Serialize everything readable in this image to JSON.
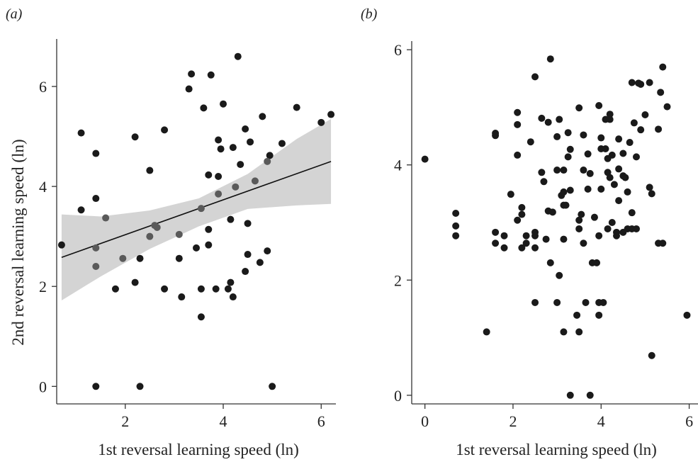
{
  "chart_data": [
    {
      "type": "scatter",
      "panel_label": "(a)",
      "xlabel": "1st reversal learning speed (ln)",
      "ylabel": "2nd reversal learning speed (ln)",
      "xlim": [
        0.6,
        6.3
      ],
      "ylim": [
        -0.35,
        6.95
      ],
      "xticks": [
        2,
        4,
        6
      ],
      "yticks": [
        0,
        2,
        4,
        6
      ],
      "regression": {
        "x": [
          0.7,
          6.2
        ],
        "y": [
          2.58,
          4.5
        ]
      },
      "confidence_band": {
        "x": [
          0.7,
          1.5,
          2.5,
          3.5,
          4.5,
          5.5,
          6.2
        ],
        "lower": [
          1.72,
          2.2,
          2.75,
          3.2,
          3.55,
          3.62,
          3.65
        ],
        "upper": [
          3.44,
          3.4,
          3.52,
          3.76,
          4.25,
          4.95,
          5.35
        ]
      },
      "points_dark": [
        [
          0.7,
          2.83
        ],
        [
          1.1,
          5.07
        ],
        [
          1.1,
          3.53
        ],
        [
          1.4,
          4.66
        ],
        [
          1.4,
          3.76
        ],
        [
          1.4,
          0.0
        ],
        [
          1.8,
          1.95
        ],
        [
          2.2,
          4.99
        ],
        [
          2.2,
          2.08
        ],
        [
          2.3,
          2.56
        ],
        [
          2.3,
          0.0
        ],
        [
          2.5,
          4.32
        ],
        [
          2.8,
          5.13
        ],
        [
          2.8,
          1.95
        ],
        [
          3.1,
          2.56
        ],
        [
          3.15,
          1.79
        ],
        [
          3.3,
          5.95
        ],
        [
          3.35,
          6.25
        ],
        [
          3.45,
          2.77
        ],
        [
          3.55,
          1.39
        ],
        [
          3.55,
          1.95
        ],
        [
          3.6,
          5.57
        ],
        [
          3.7,
          2.83
        ],
        [
          3.7,
          3.14
        ],
        [
          3.7,
          4.23
        ],
        [
          3.75,
          6.23
        ],
        [
          3.85,
          1.95
        ],
        [
          3.9,
          4.93
        ],
        [
          3.9,
          4.2
        ],
        [
          3.95,
          4.75
        ],
        [
          4.0,
          5.65
        ],
        [
          4.1,
          1.95
        ],
        [
          4.15,
          2.08
        ],
        [
          4.15,
          3.34
        ],
        [
          4.2,
          4.78
        ],
        [
          4.2,
          1.79
        ],
        [
          4.3,
          6.6
        ],
        [
          4.35,
          4.44
        ],
        [
          4.45,
          2.3
        ],
        [
          4.45,
          5.15
        ],
        [
          4.5,
          3.26
        ],
        [
          4.5,
          2.64
        ],
        [
          4.55,
          4.89
        ],
        [
          4.75,
          2.48
        ],
        [
          4.8,
          5.4
        ],
        [
          4.9,
          2.71
        ],
        [
          4.95,
          4.62
        ],
        [
          5.0,
          0.0
        ],
        [
          5.2,
          4.86
        ],
        [
          5.5,
          5.58
        ],
        [
          6.0,
          5.28
        ],
        [
          6.2,
          5.44
        ]
      ],
      "points_grey": [
        [
          1.4,
          2.77
        ],
        [
          1.4,
          2.4
        ],
        [
          1.6,
          3.37
        ],
        [
          1.95,
          2.56
        ],
        [
          2.5,
          3.0
        ],
        [
          2.6,
          3.22
        ],
        [
          2.65,
          3.18
        ],
        [
          3.1,
          3.04
        ],
        [
          3.55,
          3.56
        ],
        [
          3.9,
          3.85
        ],
        [
          4.25,
          3.99
        ],
        [
          4.65,
          4.11
        ],
        [
          4.9,
          4.5
        ]
      ],
      "colors": {
        "dark": "#1a1a1a",
        "grey": "#5a5a5a",
        "band": "#d4d4d4",
        "line": "#111111"
      }
    },
    {
      "type": "scatter",
      "panel_label": "(b)",
      "xlabel": "1st reversal learning speed (ln)",
      "ylabel": "",
      "xlim": [
        -0.3,
        6.2
      ],
      "ylim": [
        -0.15,
        6.15
      ],
      "xticks": [
        0,
        2,
        4,
        6
      ],
      "yticks": [
        0,
        2,
        4,
        6
      ],
      "points": [
        [
          0.0,
          4.1
        ],
        [
          0.7,
          3.16
        ],
        [
          0.7,
          2.94
        ],
        [
          0.7,
          2.77
        ],
        [
          1.4,
          1.1
        ],
        [
          1.6,
          4.55
        ],
        [
          1.6,
          4.51
        ],
        [
          1.6,
          2.83
        ],
        [
          1.6,
          2.64
        ],
        [
          1.8,
          2.77
        ],
        [
          1.8,
          2.56
        ],
        [
          1.95,
          3.49
        ],
        [
          2.1,
          4.91
        ],
        [
          2.1,
          4.7
        ],
        [
          2.1,
          4.17
        ],
        [
          2.1,
          3.04
        ],
        [
          2.2,
          3.26
        ],
        [
          2.2,
          3.14
        ],
        [
          2.2,
          2.56
        ],
        [
          2.3,
          2.77
        ],
        [
          2.3,
          2.64
        ],
        [
          2.4,
          4.4
        ],
        [
          2.5,
          5.53
        ],
        [
          2.5,
          2.83
        ],
        [
          2.5,
          2.77
        ],
        [
          2.5,
          2.56
        ],
        [
          2.5,
          1.61
        ],
        [
          2.65,
          4.81
        ],
        [
          2.65,
          3.87
        ],
        [
          2.7,
          3.71
        ],
        [
          2.75,
          2.71
        ],
        [
          2.8,
          4.74
        ],
        [
          2.8,
          3.2
        ],
        [
          2.85,
          5.84
        ],
        [
          2.85,
          2.3
        ],
        [
          2.9,
          3.18
        ],
        [
          3.0,
          4.49
        ],
        [
          3.0,
          3.91
        ],
        [
          3.0,
          1.61
        ],
        [
          3.05,
          4.79
        ],
        [
          3.05,
          2.08
        ],
        [
          3.1,
          3.47
        ],
        [
          3.15,
          3.91
        ],
        [
          3.15,
          3.53
        ],
        [
          3.15,
          3.3
        ],
        [
          3.15,
          2.71
        ],
        [
          3.15,
          1.1
        ],
        [
          3.2,
          3.3
        ],
        [
          3.25,
          4.56
        ],
        [
          3.25,
          4.14
        ],
        [
          3.3,
          4.27
        ],
        [
          3.3,
          3.56
        ],
        [
          3.3,
          0.0
        ],
        [
          3.45,
          1.39
        ],
        [
          3.5,
          4.99
        ],
        [
          3.5,
          3.04
        ],
        [
          3.5,
          2.89
        ],
        [
          3.5,
          1.1
        ],
        [
          3.55,
          3.14
        ],
        [
          3.6,
          4.52
        ],
        [
          3.6,
          3.91
        ],
        [
          3.6,
          2.64
        ],
        [
          3.65,
          1.61
        ],
        [
          3.7,
          4.19
        ],
        [
          3.7,
          3.58
        ],
        [
          3.75,
          3.85
        ],
        [
          3.75,
          0.0
        ],
        [
          3.8,
          2.3
        ],
        [
          3.85,
          3.09
        ],
        [
          3.9,
          2.3
        ],
        [
          3.95,
          5.03
        ],
        [
          3.95,
          2.77
        ],
        [
          3.95,
          1.39
        ],
        [
          3.95,
          1.61
        ],
        [
          4.0,
          4.47
        ],
        [
          4.0,
          4.28
        ],
        [
          4.0,
          3.58
        ],
        [
          4.05,
          1.61
        ],
        [
          4.1,
          4.79
        ],
        [
          4.1,
          4.28
        ],
        [
          4.15,
          4.11
        ],
        [
          4.15,
          3.87
        ],
        [
          4.15,
          2.89
        ],
        [
          4.2,
          4.88
        ],
        [
          4.2,
          4.79
        ],
        [
          4.2,
          3.78
        ],
        [
          4.25,
          3.0
        ],
        [
          4.25,
          4.17
        ],
        [
          4.3,
          3.66
        ],
        [
          4.35,
          2.83
        ],
        [
          4.35,
          2.77
        ],
        [
          4.4,
          4.45
        ],
        [
          4.4,
          3.93
        ],
        [
          4.4,
          3.38
        ],
        [
          4.5,
          4.2
        ],
        [
          4.5,
          3.81
        ],
        [
          4.5,
          2.83
        ],
        [
          4.55,
          3.78
        ],
        [
          4.6,
          3.53
        ],
        [
          4.6,
          2.89
        ],
        [
          4.65,
          4.39
        ],
        [
          4.7,
          5.43
        ],
        [
          4.7,
          3.17
        ],
        [
          4.7,
          2.89
        ],
        [
          4.75,
          4.73
        ],
        [
          4.8,
          4.14
        ],
        [
          4.8,
          2.89
        ],
        [
          4.85,
          5.42
        ],
        [
          4.9,
          5.4
        ],
        [
          4.9,
          4.61
        ],
        [
          5.0,
          4.87
        ],
        [
          5.1,
          5.43
        ],
        [
          5.1,
          3.61
        ],
        [
          5.15,
          3.5
        ],
        [
          5.15,
          0.69
        ],
        [
          5.3,
          4.62
        ],
        [
          5.3,
          2.64
        ],
        [
          5.35,
          5.26
        ],
        [
          5.4,
          5.7
        ],
        [
          5.4,
          2.64
        ],
        [
          5.5,
          5.01
        ],
        [
          5.95,
          1.39
        ]
      ],
      "colors": {
        "dark": "#1a1a1a"
      }
    }
  ]
}
